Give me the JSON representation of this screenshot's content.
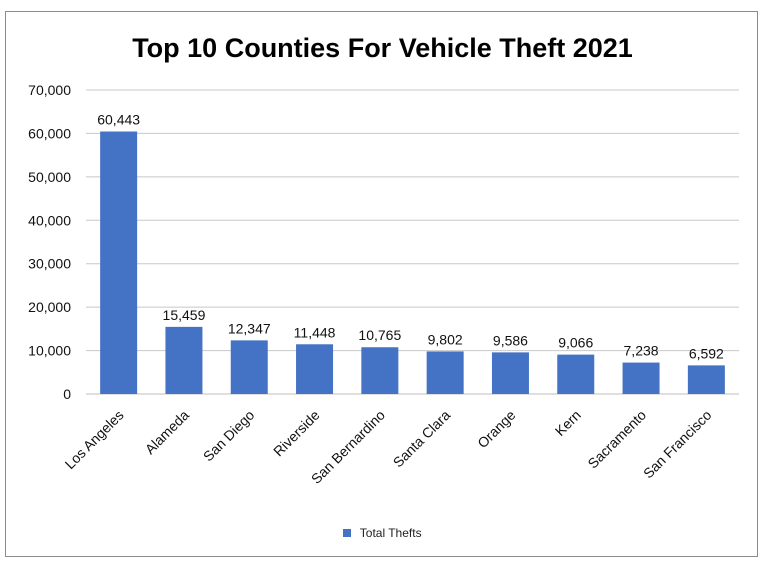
{
  "chart_data": {
    "type": "bar",
    "title": "Top 10 Counties For Vehicle Theft 2021",
    "categories": [
      "Los Angeles",
      "Alameda",
      "San Diego",
      "Riverside",
      "San Bernardino",
      "Santa Clara",
      "Orange",
      "Kern",
      "Sacramento",
      "San Francisco"
    ],
    "series": [
      {
        "name": "Total Thefts",
        "values": [
          60443,
          15459,
          12347,
          11448,
          10765,
          9802,
          9586,
          9066,
          7238,
          6592
        ],
        "data_labels": [
          "60,443",
          "15,459",
          "12,347",
          "11,448",
          "10,765",
          "9,802",
          "9,586",
          "9,066",
          "7,238",
          "6,592"
        ],
        "color": "#4472C4"
      }
    ],
    "y_ticks": [
      "0",
      "10,000",
      "20,000",
      "30,000",
      "40,000",
      "50,000",
      "60,000",
      "70,000"
    ],
    "ylim": [
      0,
      70000
    ],
    "grid": true,
    "legend_position": "bottom"
  }
}
